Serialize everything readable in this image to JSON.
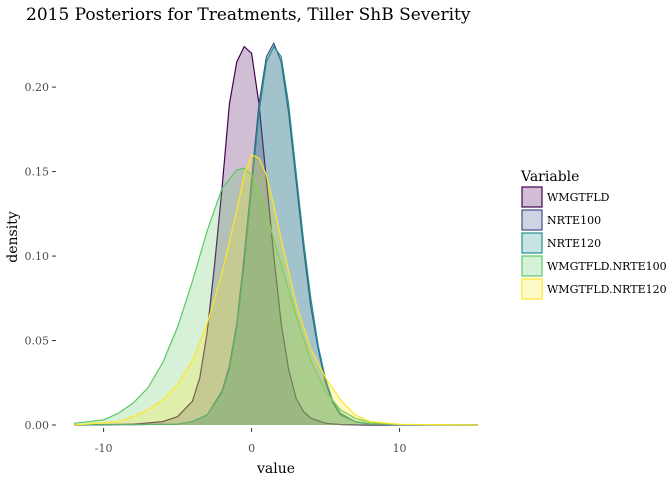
{
  "chart_data": {
    "type": "area",
    "title": "2015 Posteriors for Treatments, Tiller ShB Severity",
    "xlabel": "value",
    "ylabel": "density",
    "xlim": [
      -12,
      15.3
    ],
    "ylim": [
      0,
      0.235
    ],
    "x_ticks": [
      -10,
      0,
      10
    ],
    "y_ticks": [
      0.0,
      0.05,
      0.1,
      0.15,
      0.2
    ],
    "x_tick_labels": [
      "-10",
      "0",
      "10"
    ],
    "y_tick_labels": [
      "0.00",
      "0.05",
      "0.10",
      "0.15",
      "0.20"
    ],
    "grid": false,
    "legend": {
      "title": "Variable",
      "placement": "right",
      "items": [
        "WMGTFLD",
        "NRTE100",
        "NRTE120",
        "WMGTFLD.NRTE100",
        "WMGTFLD.NRTE120"
      ]
    },
    "series": [
      {
        "name": "WMGTFLD",
        "color": "#440154",
        "x": [
          -12,
          -8,
          -6,
          -5,
          -4,
          -3.5,
          -3,
          -2.5,
          -2,
          -1.5,
          -1,
          -0.5,
          0,
          0.5,
          1,
          1.5,
          2,
          2.5,
          3,
          3.5,
          4,
          5,
          6,
          8,
          15.3
        ],
        "values": [
          0.0,
          0.0005,
          0.002,
          0.005,
          0.014,
          0.028,
          0.055,
          0.095,
          0.14,
          0.19,
          0.215,
          0.224,
          0.22,
          0.19,
          0.145,
          0.1,
          0.06,
          0.033,
          0.016,
          0.008,
          0.004,
          0.001,
          0.0003,
          0.0,
          0.0
        ]
      },
      {
        "name": "NRTE100",
        "color": "#3b528b",
        "x": [
          -12,
          -5,
          -4,
          -3,
          -2,
          -1.5,
          -1,
          -0.5,
          0,
          0.5,
          1,
          1.5,
          2,
          2.5,
          3,
          3.5,
          4,
          4.5,
          5,
          5.5,
          6,
          7,
          8,
          10,
          15.3
        ],
        "values": [
          0.0,
          0.0005,
          0.002,
          0.006,
          0.02,
          0.035,
          0.06,
          0.1,
          0.145,
          0.19,
          0.218,
          0.226,
          0.215,
          0.185,
          0.145,
          0.105,
          0.07,
          0.045,
          0.025,
          0.013,
          0.006,
          0.002,
          0.0005,
          0.0001,
          0.0
        ]
      },
      {
        "name": "NRTE120",
        "color": "#21908c",
        "x": [
          -12,
          -5,
          -4,
          -3,
          -2,
          -1.5,
          -1,
          -0.5,
          0,
          0.5,
          1,
          1.5,
          2,
          2.5,
          3,
          3.5,
          4,
          4.5,
          5,
          5.5,
          6,
          7,
          8,
          10,
          15.3
        ],
        "values": [
          0.0,
          0.0005,
          0.002,
          0.006,
          0.019,
          0.033,
          0.058,
          0.095,
          0.14,
          0.185,
          0.215,
          0.224,
          0.218,
          0.19,
          0.15,
          0.11,
          0.075,
          0.047,
          0.027,
          0.014,
          0.007,
          0.002,
          0.0006,
          0.0001,
          0.0
        ]
      },
      {
        "name": "WMGTFLD.NRTE100",
        "color": "#5dc863",
        "x": [
          -12,
          -10,
          -9,
          -8,
          -7,
          -6,
          -5,
          -4,
          -3,
          -2,
          -1,
          -0.5,
          0,
          0.5,
          1,
          2,
          3,
          4,
          5,
          6,
          7,
          8,
          10,
          15.3
        ],
        "values": [
          0.001,
          0.003,
          0.007,
          0.013,
          0.022,
          0.037,
          0.058,
          0.085,
          0.115,
          0.14,
          0.151,
          0.152,
          0.148,
          0.138,
          0.125,
          0.095,
          0.065,
          0.038,
          0.02,
          0.009,
          0.004,
          0.0015,
          0.0003,
          0.0
        ]
      },
      {
        "name": "WMGTFLD.NRTE120",
        "color": "#fde725",
        "x": [
          -12,
          -9,
          -8,
          -7,
          -6,
          -5,
          -4,
          -3,
          -2,
          -1,
          -0.5,
          0,
          0.5,
          1,
          1.5,
          2,
          3,
          4,
          5,
          6,
          7,
          8,
          10,
          15.3
        ],
        "values": [
          0.0,
          0.002,
          0.005,
          0.009,
          0.015,
          0.024,
          0.038,
          0.06,
          0.09,
          0.127,
          0.148,
          0.16,
          0.158,
          0.148,
          0.13,
          0.11,
          0.072,
          0.045,
          0.028,
          0.015,
          0.006,
          0.002,
          0.0004,
          0.0
        ]
      }
    ]
  }
}
